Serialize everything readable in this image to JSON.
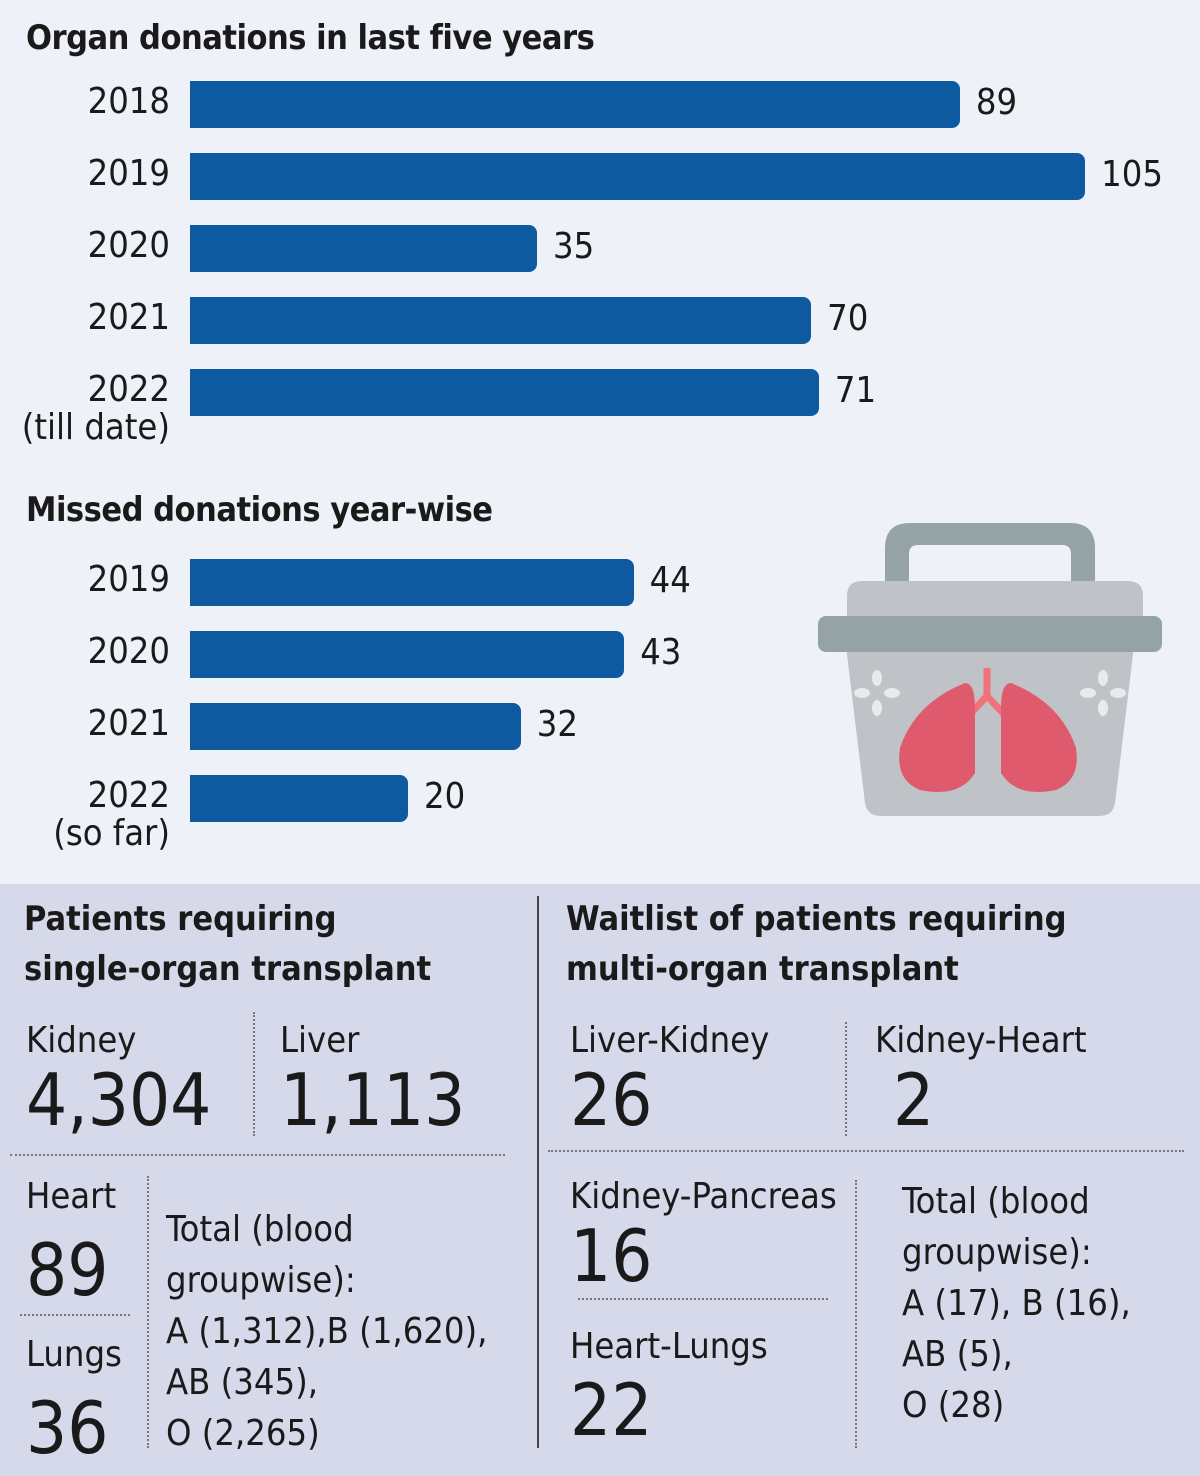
{
  "colors": {
    "bar": "#0e5aa0",
    "top_background": "#eef1f8",
    "bottom_background": "#d5d9ea"
  },
  "chart_data": [
    {
      "type": "bar",
      "orientation": "horizontal",
      "title": "Organ donations in last five years",
      "categories": [
        "2018",
        "2019",
        "2020",
        "2021",
        "2022"
      ],
      "category_notes": [
        "",
        "",
        "",
        "",
        "(till date)"
      ],
      "values": [
        89,
        105,
        35,
        70,
        71
      ]
    },
    {
      "type": "bar",
      "orientation": "horizontal",
      "title": "Missed donations year-wise",
      "categories": [
        "2019",
        "2020",
        "2021",
        "2022"
      ],
      "category_notes": [
        "",
        "",
        "",
        "(so far)"
      ],
      "values": [
        44,
        43,
        32,
        20
      ]
    }
  ],
  "illustration": "organ-cooler-box-with-lungs-icon",
  "single": {
    "title1": "Patients requiring",
    "title2": "single-organ transplant",
    "kidney_label": "Kidney",
    "kidney": "4,304",
    "liver_label": "Liver",
    "liver": "1,113",
    "heart_label": "Heart",
    "heart": "89",
    "lungs_label": "Lungs",
    "lungs": "36",
    "total": [
      "Total (blood",
      "groupwise):",
      "A (1,312),B (1,620),",
      "AB (345),",
      "O (2,265)"
    ]
  },
  "multi": {
    "title1": "Waitlist of patients requiring",
    "title2": "multi-organ transplant",
    "lk_label": "Liver-Kidney",
    "lk": "26",
    "kh_label": "Kidney-Heart",
    "kh": "2",
    "kp_label": "Kidney-Pancreas",
    "kp": "16",
    "hl_label": "Heart-Lungs",
    "hl": "22",
    "total": [
      "Total  (blood",
      "groupwise):",
      "A (17), B (16),",
      "AB (5),",
      "O (28)"
    ]
  }
}
